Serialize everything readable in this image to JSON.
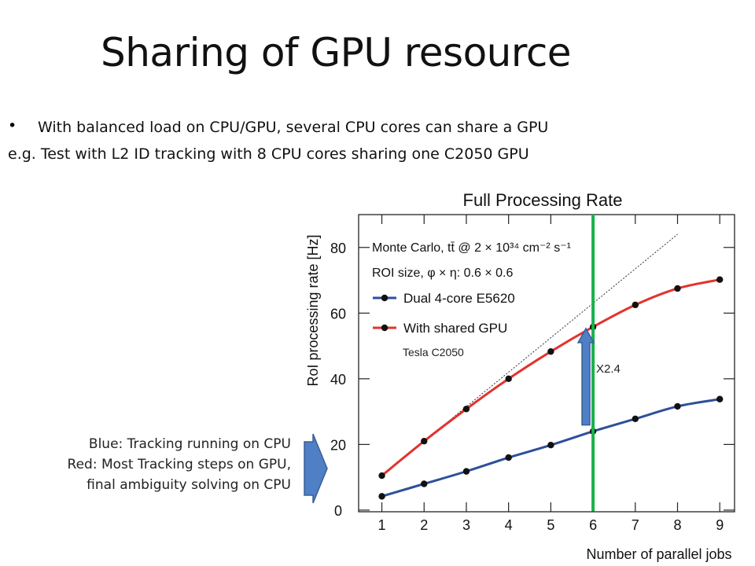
{
  "slide": {
    "title": "Sharing of GPU resource",
    "bullet": "With balanced load on CPU/GPU, several CPU cores can share a GPU",
    "example": "e.g. Test with L2 ID tracking with 8 CPU cores sharing one  C2050 GPU",
    "notes": [
      "Blue: Tracking running on CPU",
      "Red: Most Tracking steps on GPU,",
      "final ambiguity solving on CPU"
    ],
    "factor_label": "X2.4"
  },
  "chart_data": {
    "type": "line",
    "title": "Full Processing Rate",
    "xlabel": "Number of parallel jobs",
    "ylabel": "RoI processing rate [Hz]",
    "annotation_line1": "Monte Carlo, tt̄ @ 2 × 10³⁴ cm⁻² s⁻¹",
    "annotation_line2": "ROI size, φ × η: 0.6 × 0.6",
    "gpu_label": "Tesla C2050",
    "x": [
      1,
      2,
      3,
      4,
      5,
      6,
      7,
      8,
      9
    ],
    "xlim": [
      0.45,
      9.35
    ],
    "ylim": [
      -0.5,
      90
    ],
    "xticks": [
      1,
      2,
      3,
      4,
      5,
      6,
      7,
      8,
      9
    ],
    "yticks": [
      0,
      20,
      40,
      60,
      80
    ],
    "grid": false,
    "legend_position": "top-left",
    "series": [
      {
        "name": "Dual 4-core E5620",
        "color": "#2e4f9a",
        "values": [
          4.2,
          8,
          11.8,
          16,
          19.8,
          24,
          27.8,
          31.6,
          33.8
        ]
      },
      {
        "name": "With shared GPU",
        "color": "#e2332e",
        "values": [
          10.5,
          21,
          30.8,
          40,
          48.3,
          55.8,
          62.5,
          67.5,
          70.2
        ]
      }
    ],
    "linear_scaling_reference": [
      [
        1,
        10.5
      ],
      [
        8,
        84
      ]
    ],
    "highlight_x": 6,
    "colors": {
      "highlight_line": "#19b24b",
      "arrow": "#4f7fc4",
      "arrow_border": "#3a5f97"
    }
  }
}
